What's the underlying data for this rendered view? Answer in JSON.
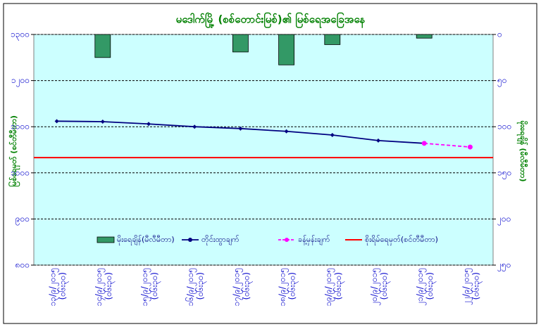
{
  "chart_data": {
    "type": "combo",
    "title": "မဒေါက်မြို့ (စစ်တောင်းမြစ်)၏ မြစ်ရေအခြေအနေ",
    "y_label": "မြစ်ရေမှတ် (စင်တီမီတာ)",
    "y2_label": "မိုးရေချိန် (မီလီမီတာ)",
    "categories": [
      "၁၃/၉/၂၀၁၅",
      "၁၄/၉/၂၀၁၅",
      "၁၅/၉/၂၀၁၅",
      "၁၆/၉/၂၀၁၅",
      "၁၇/၉/၂၀၁၅",
      "၁၈/၉/၂၀၁၅",
      "၁၉/၉/၂၀၁၅",
      "၂၀/၉/၂၀၁၅",
      "၂၁/၉/၂၀၁၅",
      "၂၂/၉/၂၀၁၅"
    ],
    "category_times": [
      "(၀၆း၃၀)",
      "(၀၆း၃၀)",
      "(၀၆း၃၀)",
      "(၀၆း၃၀)",
      "(၀၆း၃၀)",
      "(၀၆း၃၀)",
      "(၀၆း၃၀)",
      "(၀၆း၃၀)",
      "(၀၆း၃၀)",
      "(၀၆း၃၀)"
    ],
    "ylim": [
      800,
      1300
    ],
    "yticks": [
      {
        "value": 800,
        "label": "၈၀၀"
      },
      {
        "value": 900,
        "label": "၉၀၀"
      },
      {
        "value": 1000,
        "label": "၁၀၀၀"
      },
      {
        "value": 1100,
        "label": "၁၁၀၀"
      },
      {
        "value": 1200,
        "label": "၁၂၀၀"
      },
      {
        "value": 1300,
        "label": "၁၃၀၀"
      }
    ],
    "y2lim": [
      0,
      250
    ],
    "y2_inverted": true,
    "y2ticks": [
      {
        "value": 0,
        "label": "၀"
      },
      {
        "value": 50,
        "label": "၅၀"
      },
      {
        "value": 100,
        "label": "၁၀၀"
      },
      {
        "value": 150,
        "label": "၁၅၀"
      },
      {
        "value": 200,
        "label": "၂၀၀"
      },
      {
        "value": 250,
        "label": "၂၅၀"
      }
    ],
    "grid": true,
    "background": "#ccffff",
    "series": [
      {
        "name": "မိုးရေချိန်(မီလီမီတာ)",
        "type": "bar",
        "axis": "y2",
        "color": "#339966",
        "values": [
          0,
          25,
          0,
          0,
          19,
          33,
          11,
          0,
          4,
          0
        ]
      },
      {
        "name": "တိုင်းထွာချက်",
        "type": "line",
        "color": "#000080",
        "values": [
          1112,
          1111,
          1106,
          1100,
          1096,
          1090,
          1082,
          1070,
          1064,
          null
        ]
      },
      {
        "name": "ခန့်မှန်းချက်",
        "type": "line",
        "dashed": true,
        "color": "#ff00ff",
        "values": [
          null,
          null,
          null,
          null,
          null,
          null,
          null,
          null,
          1064,
          1056
        ]
      }
    ],
    "reference_line": {
      "name": "စိုးရိမ်ရေမှတ်(စင်တီမီတာ)",
      "value": 1033,
      "color": "#ff0000"
    }
  }
}
